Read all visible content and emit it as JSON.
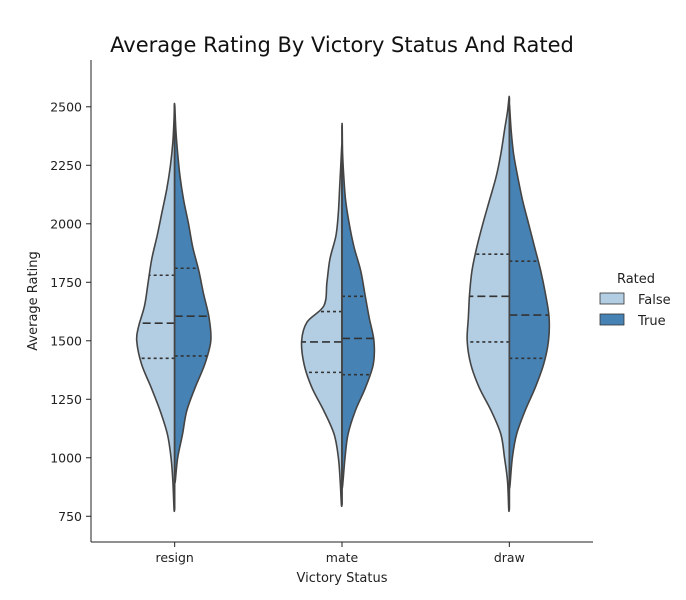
{
  "chart_data": {
    "type": "violin",
    "title": "Average Rating By Victory Status And Rated",
    "xlabel": "Victory Status",
    "ylabel": "Average Rating",
    "categories": [
      "resign",
      "mate",
      "draw"
    ],
    "yticks": [
      750,
      1000,
      1250,
      1500,
      1750,
      2000,
      2250,
      2500
    ],
    "ylim": [
      640,
      2700
    ],
    "legend": {
      "title": "Rated",
      "placement": "right",
      "entries": [
        {
          "label": "False",
          "color": "#b3cde3"
        },
        {
          "label": "True",
          "color": "#4682b4"
        }
      ]
    },
    "series": [
      {
        "name": "False",
        "color": "#b3cde3",
        "side": "left",
        "groups": [
          {
            "category": "resign",
            "quartiles": [
              1425,
              1575,
              1780
            ],
            "profile": [
              [
                780,
                0.01
              ],
              [
                900,
                0.03
              ],
              [
                1000,
                0.06
              ],
              [
                1100,
                0.12
              ],
              [
                1200,
                0.24
              ],
              [
                1300,
                0.39
              ],
              [
                1400,
                0.55
              ],
              [
                1500,
                0.63
              ],
              [
                1560,
                0.6
              ],
              [
                1650,
                0.5
              ],
              [
                1750,
                0.44
              ],
              [
                1850,
                0.38
              ],
              [
                1950,
                0.29
              ],
              [
                2050,
                0.21
              ],
              [
                2150,
                0.13
              ],
              [
                2250,
                0.07
              ],
              [
                2350,
                0.03
              ],
              [
                2450,
                0.01
              ],
              [
                2510,
                0.005
              ]
            ]
          },
          {
            "category": "mate",
            "quartiles": [
              1365,
              1495,
              1625
            ],
            "profile": [
              [
                800,
                0.01
              ],
              [
                900,
                0.03
              ],
              [
                1000,
                0.06
              ],
              [
                1100,
                0.13
              ],
              [
                1200,
                0.3
              ],
              [
                1300,
                0.5
              ],
              [
                1400,
                0.63
              ],
              [
                1500,
                0.67
              ],
              [
                1580,
                0.58
              ],
              [
                1650,
                0.3
              ],
              [
                1750,
                0.25
              ],
              [
                1850,
                0.2
              ],
              [
                1950,
                0.1
              ],
              [
                2050,
                0.06
              ],
              [
                2150,
                0.04
              ],
              [
                2250,
                0.02
              ],
              [
                2330,
                0.005
              ]
            ]
          },
          {
            "category": "draw",
            "quartiles": [
              1495,
              1690,
              1870
            ],
            "profile": [
              [
                780,
                0.01
              ],
              [
                900,
                0.03
              ],
              [
                1000,
                0.08
              ],
              [
                1100,
                0.14
              ],
              [
                1200,
                0.3
              ],
              [
                1300,
                0.5
              ],
              [
                1400,
                0.64
              ],
              [
                1500,
                0.7
              ],
              [
                1600,
                0.68
              ],
              [
                1700,
                0.66
              ],
              [
                1800,
                0.62
              ],
              [
                1900,
                0.54
              ],
              [
                2000,
                0.44
              ],
              [
                2100,
                0.33
              ],
              [
                2200,
                0.22
              ],
              [
                2300,
                0.14
              ],
              [
                2400,
                0.08
              ],
              [
                2480,
                0.03
              ],
              [
                2540,
                0.005
              ]
            ]
          }
        ]
      },
      {
        "name": "True",
        "color": "#4682b4",
        "side": "right",
        "groups": [
          {
            "category": "resign",
            "quartiles": [
              1435,
              1605,
              1810
            ],
            "profile": [
              [
                900,
                0.01
              ],
              [
                1000,
                0.05
              ],
              [
                1100,
                0.13
              ],
              [
                1200,
                0.2
              ],
              [
                1300,
                0.34
              ],
              [
                1400,
                0.5
              ],
              [
                1500,
                0.6
              ],
              [
                1600,
                0.57
              ],
              [
                1700,
                0.48
              ],
              [
                1800,
                0.4
              ],
              [
                1900,
                0.3
              ],
              [
                2000,
                0.23
              ],
              [
                2100,
                0.15
              ],
              [
                2200,
                0.09
              ],
              [
                2300,
                0.05
              ],
              [
                2400,
                0.02
              ],
              [
                2500,
                0.003
              ]
            ]
          },
          {
            "category": "mate",
            "quartiles": [
              1355,
              1510,
              1690
            ],
            "profile": [
              [
                880,
                0.01
              ],
              [
                1000,
                0.05
              ],
              [
                1100,
                0.1
              ],
              [
                1200,
                0.22
              ],
              [
                1300,
                0.39
              ],
              [
                1400,
                0.52
              ],
              [
                1500,
                0.53
              ],
              [
                1600,
                0.45
              ],
              [
                1700,
                0.38
              ],
              [
                1800,
                0.31
              ],
              [
                1900,
                0.2
              ],
              [
                2000,
                0.12
              ],
              [
                2100,
                0.06
              ],
              [
                2200,
                0.03
              ],
              [
                2300,
                0.01
              ],
              [
                2420,
                0.003
              ]
            ]
          },
          {
            "category": "draw",
            "quartiles": [
              1425,
              1610,
              1840
            ],
            "profile": [
              [
                880,
                0.01
              ],
              [
                1000,
                0.05
              ],
              [
                1100,
                0.12
              ],
              [
                1200,
                0.26
              ],
              [
                1300,
                0.43
              ],
              [
                1400,
                0.57
              ],
              [
                1500,
                0.65
              ],
              [
                1600,
                0.66
              ],
              [
                1700,
                0.6
              ],
              [
                1800,
                0.52
              ],
              [
                1900,
                0.42
              ],
              [
                2000,
                0.32
              ],
              [
                2100,
                0.22
              ],
              [
                2200,
                0.14
              ],
              [
                2300,
                0.07
              ],
              [
                2400,
                0.03
              ],
              [
                2500,
                0.005
              ]
            ]
          }
        ]
      }
    ]
  }
}
